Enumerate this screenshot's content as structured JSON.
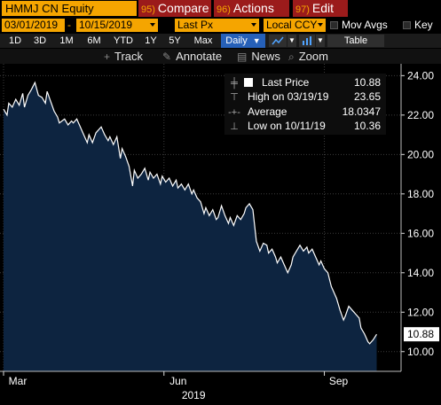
{
  "header": {
    "security": "HMMJ CN Equity",
    "compare": {
      "num": "95",
      "label": "Compare"
    },
    "actions": {
      "num": "96",
      "label": "Actions"
    },
    "edit": {
      "num": "97",
      "label": "Edit"
    }
  },
  "settings": {
    "start_date": "03/01/2019",
    "date_separator": "-",
    "end_date": "10/15/2019",
    "field": "Last Px",
    "currency": "Local CCY",
    "mov_avgs_label": "Mov Avgs",
    "key_label": "Key"
  },
  "periods": {
    "items": [
      "1D",
      "3D",
      "1M",
      "6M",
      "YTD",
      "1Y",
      "5Y",
      "Max"
    ],
    "frequency": "Daily",
    "table_label": "Table"
  },
  "tools": {
    "track": "Track",
    "annotate": "Annotate",
    "news": "News",
    "zoom": "Zoom"
  },
  "legend": {
    "last_price_label": "Last Price",
    "last_price_value": "10.88",
    "high_label": "High on 03/19/19",
    "high_value": "23.65",
    "average_label": "Average",
    "average_value": "18.0347",
    "low_label": "Low on 10/11/19",
    "low_value": "10.36"
  },
  "colors": {
    "accent_orange": "#f5a500",
    "header_red": "#9b1b1b",
    "area_fill": "#0d2440",
    "line": "#ffffff",
    "active_period": "#2660b8"
  },
  "chart_data": {
    "type": "area",
    "ylim": [
      9.0,
      24.6
    ],
    "y_ticks": [
      10.0,
      12.0,
      14.0,
      16.0,
      18.0,
      20.0,
      22.0,
      24.0
    ],
    "y_tick_labels": [
      "10.00",
      "12.00",
      "14.00",
      "16.00",
      "18.00",
      "20.00",
      "22.00",
      "24.00"
    ],
    "x_tick_labels": [
      "Mar",
      "Jun",
      "Sep"
    ],
    "x_year_label": "2019",
    "last_price_tag": "10.88",
    "x_start": "2019-03-01",
    "x_end": "2019-10-15",
    "x_tick_dates": [
      "2019-03-01",
      "2019-06-01",
      "2019-09-01"
    ],
    "year_label_date": "2019-06-18",
    "series": [
      {
        "points": [
          [
            "2019-03-01",
            22.3
          ],
          [
            "2019-03-03",
            22.0
          ],
          [
            "2019-03-04",
            22.6
          ],
          [
            "2019-03-06",
            22.4
          ],
          [
            "2019-03-08",
            22.8
          ],
          [
            "2019-03-10",
            22.5
          ],
          [
            "2019-03-12",
            23.1
          ],
          [
            "2019-03-13",
            22.4
          ],
          [
            "2019-03-15",
            23.0
          ],
          [
            "2019-03-17",
            23.3
          ],
          [
            "2019-03-19",
            23.65
          ],
          [
            "2019-03-21",
            23.0
          ],
          [
            "2019-03-23",
            22.9
          ],
          [
            "2019-03-25",
            22.6
          ],
          [
            "2019-03-26",
            23.2
          ],
          [
            "2019-03-28",
            22.7
          ],
          [
            "2019-03-30",
            22.2
          ],
          [
            "2019-04-01",
            21.9
          ],
          [
            "2019-04-02",
            21.6
          ],
          [
            "2019-04-05",
            21.8
          ],
          [
            "2019-04-07",
            21.5
          ],
          [
            "2019-04-09",
            21.7
          ],
          [
            "2019-04-10",
            21.6
          ],
          [
            "2019-04-12",
            21.8
          ],
          [
            "2019-04-14",
            21.4
          ],
          [
            "2019-04-16",
            21.0
          ],
          [
            "2019-04-18",
            20.6
          ],
          [
            "2019-04-19",
            21.0
          ],
          [
            "2019-04-21",
            20.6
          ],
          [
            "2019-04-23",
            21.1
          ],
          [
            "2019-04-26",
            21.4
          ],
          [
            "2019-04-28",
            21.0
          ],
          [
            "2019-04-30",
            20.7
          ],
          [
            "2019-05-01",
            20.9
          ],
          [
            "2019-05-03",
            20.5
          ],
          [
            "2019-05-05",
            20.9
          ],
          [
            "2019-05-07",
            19.8
          ],
          [
            "2019-05-08",
            20.3
          ],
          [
            "2019-05-10",
            19.9
          ],
          [
            "2019-05-12",
            19.4
          ],
          [
            "2019-05-14",
            18.4
          ],
          [
            "2019-05-15",
            19.2
          ],
          [
            "2019-05-17",
            18.8
          ],
          [
            "2019-05-19",
            19.0
          ],
          [
            "2019-05-21",
            19.3
          ],
          [
            "2019-05-23",
            18.7
          ],
          [
            "2019-05-24",
            19.1
          ],
          [
            "2019-05-26",
            18.8
          ],
          [
            "2019-05-28",
            19.0
          ],
          [
            "2019-05-30",
            18.5
          ],
          [
            "2019-05-31",
            18.9
          ],
          [
            "2019-06-02",
            18.6
          ],
          [
            "2019-06-04",
            18.8
          ],
          [
            "2019-06-06",
            18.4
          ],
          [
            "2019-06-08",
            18.7
          ],
          [
            "2019-06-09",
            18.3
          ],
          [
            "2019-06-11",
            18.5
          ],
          [
            "2019-06-13",
            18.2
          ],
          [
            "2019-06-15",
            18.5
          ],
          [
            "2019-06-17",
            18.0
          ],
          [
            "2019-06-18",
            18.2
          ],
          [
            "2019-06-20",
            17.8
          ],
          [
            "2019-06-22",
            17.6
          ],
          [
            "2019-06-24",
            17.0
          ],
          [
            "2019-06-25",
            17.3
          ],
          [
            "2019-06-27",
            16.9
          ],
          [
            "2019-06-29",
            17.2
          ],
          [
            "2019-07-01",
            16.7
          ],
          [
            "2019-07-02",
            16.8
          ],
          [
            "2019-07-04",
            17.4
          ],
          [
            "2019-07-06",
            16.9
          ],
          [
            "2019-07-08",
            16.5
          ],
          [
            "2019-07-09",
            16.8
          ],
          [
            "2019-07-11",
            16.4
          ],
          [
            "2019-07-13",
            16.9
          ],
          [
            "2019-07-15",
            16.7
          ],
          [
            "2019-07-17",
            17.0
          ],
          [
            "2019-07-18",
            17.3
          ],
          [
            "2019-07-20",
            17.5
          ],
          [
            "2019-07-22",
            17.2
          ],
          [
            "2019-07-24",
            15.6
          ],
          [
            "2019-07-26",
            15.1
          ],
          [
            "2019-07-28",
            15.5
          ],
          [
            "2019-07-30",
            15.4
          ],
          [
            "2019-07-31",
            15.0
          ],
          [
            "2019-08-02",
            15.2
          ],
          [
            "2019-08-04",
            14.8
          ],
          [
            "2019-08-05",
            14.5
          ],
          [
            "2019-08-07",
            14.8
          ],
          [
            "2019-08-09",
            14.4
          ],
          [
            "2019-08-11",
            14.0
          ],
          [
            "2019-08-13",
            14.4
          ],
          [
            "2019-08-14",
            14.8
          ],
          [
            "2019-08-16",
            15.1
          ],
          [
            "2019-08-18",
            15.4
          ],
          [
            "2019-08-20",
            15.1
          ],
          [
            "2019-08-22",
            15.3
          ],
          [
            "2019-08-23",
            15.0
          ],
          [
            "2019-08-25",
            15.2
          ],
          [
            "2019-08-27",
            14.8
          ],
          [
            "2019-08-29",
            14.4
          ],
          [
            "2019-08-30",
            14.6
          ],
          [
            "2019-09-01",
            14.2
          ],
          [
            "2019-09-03",
            14.0
          ],
          [
            "2019-09-05",
            13.3
          ],
          [
            "2019-09-06",
            13.1
          ],
          [
            "2019-09-08",
            12.7
          ],
          [
            "2019-09-10",
            12.1
          ],
          [
            "2019-09-12",
            11.6
          ],
          [
            "2019-09-13",
            11.8
          ],
          [
            "2019-09-15",
            12.3
          ],
          [
            "2019-09-17",
            12.1
          ],
          [
            "2019-09-19",
            11.9
          ],
          [
            "2019-09-21",
            11.7
          ],
          [
            "2019-09-22",
            11.2
          ],
          [
            "2019-09-24",
            10.9
          ],
          [
            "2019-09-26",
            10.5
          ],
          [
            "2019-09-27",
            10.4
          ],
          [
            "2019-09-29",
            10.6
          ],
          [
            "2019-10-01",
            10.88
          ]
        ]
      }
    ]
  }
}
